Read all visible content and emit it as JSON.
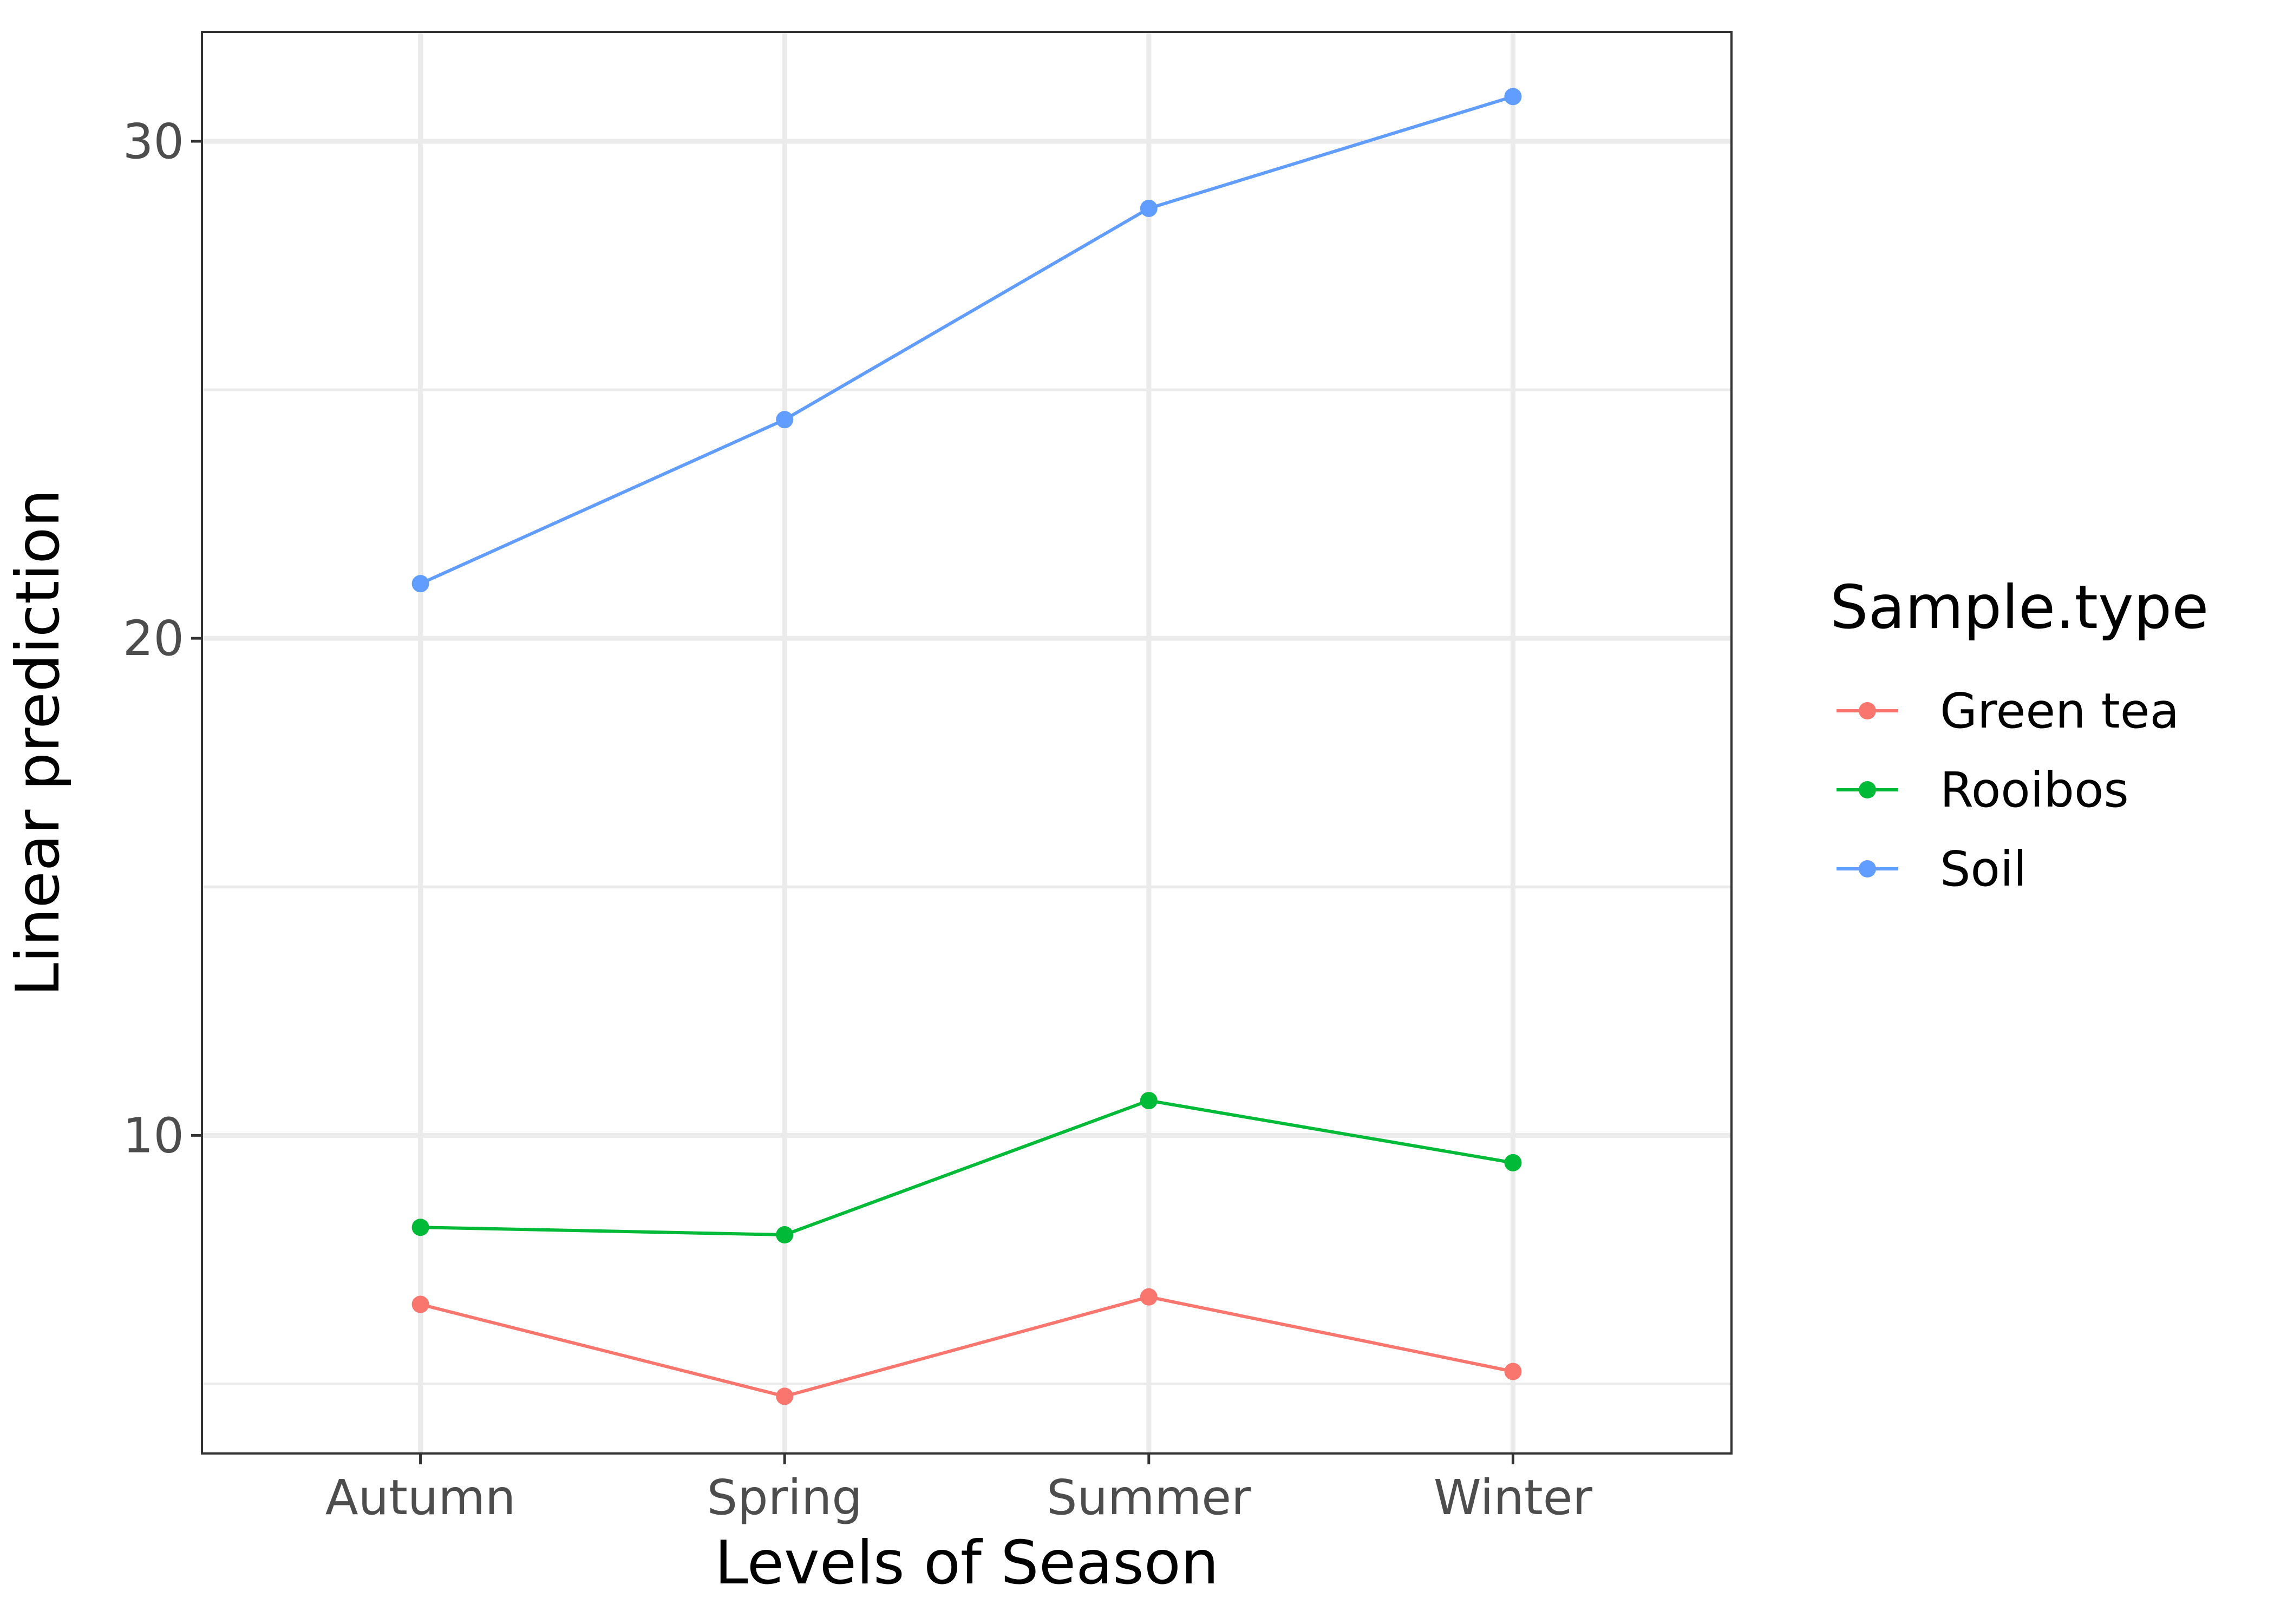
{
  "chart_data": {
    "type": "line",
    "categories": [
      "Autumn",
      "Spring",
      "Summer",
      "Winter"
    ],
    "series": [
      {
        "name": "Green tea",
        "color": "#F8766D",
        "values": [
          6.6,
          4.75,
          6.75,
          5.25
        ]
      },
      {
        "name": "Rooibos",
        "color": "#00BA38",
        "values": [
          8.15,
          8.0,
          10.7,
          9.45
        ]
      },
      {
        "name": "Soil",
        "color": "#619CFF",
        "values": [
          21.1,
          24.4,
          28.65,
          30.9
        ]
      }
    ],
    "xlabel": "Levels of Season",
    "ylabel": "Linear prediction",
    "ylim": [
      3.6,
      32.2
    ],
    "yticks": [
      10,
      20,
      30
    ],
    "yminor": [
      5,
      15,
      25
    ],
    "legend": {
      "title": "Sample.type",
      "position": "right"
    },
    "grid": true
  }
}
